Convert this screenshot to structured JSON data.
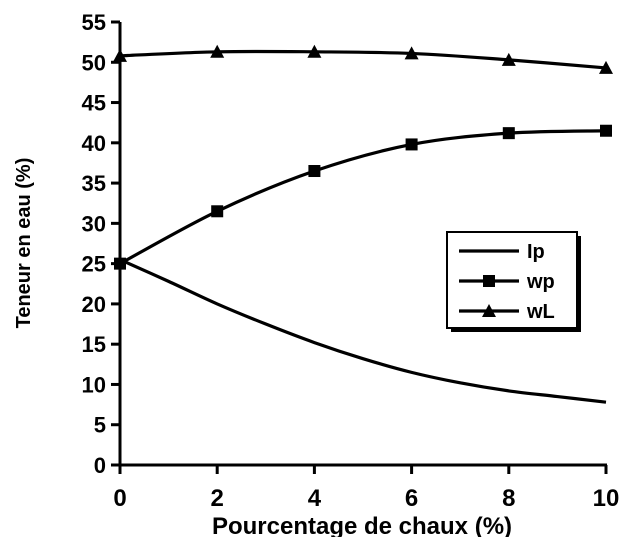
{
  "chart_data": {
    "type": "line",
    "xlabel": "Pourcentage de chaux (%)",
    "ylabel": "Teneur en eau (%)",
    "xlim": [
      0,
      10
    ],
    "ylim": [
      0,
      55
    ],
    "x_ticks": [
      0,
      2,
      4,
      6,
      8,
      10
    ],
    "y_ticks": [
      0,
      5,
      10,
      15,
      20,
      25,
      30,
      35,
      40,
      45,
      50,
      55
    ],
    "grid": false,
    "legend_position": "center-right",
    "series": [
      {
        "name": "Ip",
        "marker": "none",
        "x": [
          0,
          1,
          2,
          3,
          4,
          5,
          6,
          7,
          8,
          9,
          10
        ],
        "y": [
          25.5,
          22.8,
          20.0,
          17.5,
          15.2,
          13.2,
          11.5,
          10.2,
          9.2,
          8.5,
          7.8
        ]
      },
      {
        "name": "wp",
        "marker": "square",
        "x": [
          0,
          2,
          4,
          6,
          8,
          10
        ],
        "y": [
          25.0,
          31.5,
          36.5,
          39.8,
          41.2,
          41.5
        ]
      },
      {
        "name": "wL",
        "marker": "triangle",
        "x": [
          0,
          2,
          4,
          6,
          8,
          10
        ],
        "y": [
          50.8,
          51.3,
          51.3,
          51.1,
          50.3,
          49.3
        ]
      }
    ]
  }
}
